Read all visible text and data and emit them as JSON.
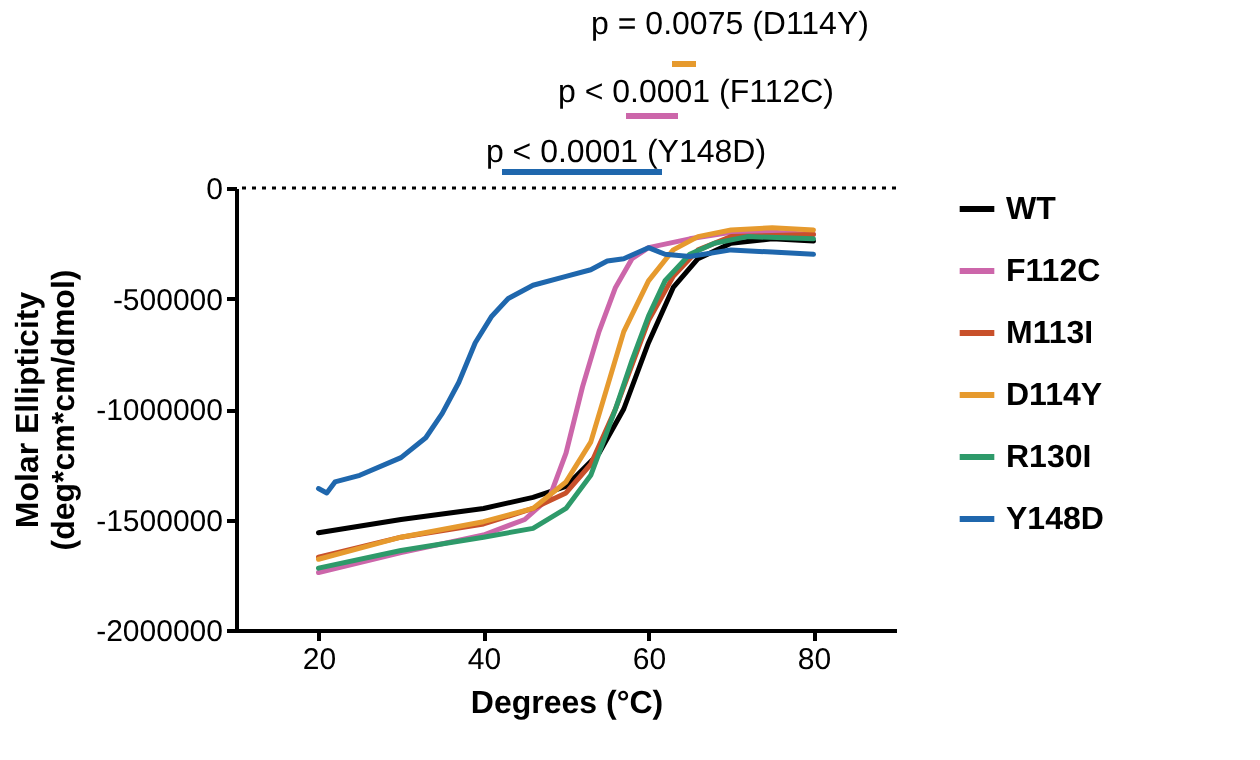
{
  "chart_data": {
    "type": "line",
    "xlabel": "Degrees (°C)",
    "ylabel": "Molar Ellipticity\n(deg*cm*cm/dmol)",
    "xlim": [
      10,
      90
    ],
    "xticks": [
      20,
      40,
      60,
      80
    ],
    "ylim": [
      -2000000,
      0
    ],
    "yticks": [
      -2000000,
      -1500000,
      -1000000,
      -500000,
      0
    ],
    "grid": false,
    "legend": "right",
    "line_style": "solid",
    "marker": "none",
    "ref_lines": [
      {
        "axis": "y",
        "value": 0,
        "line_style": "dotted",
        "color": "#000000"
      }
    ],
    "annotations": [
      "p < 0.0001 (Y148D)",
      "p < 0.0001 (F112C)",
      "p = 0.0075 (D114Y)"
    ],
    "series": [
      {
        "name": "WT",
        "color": "#000000",
        "x": [
          20,
          30,
          40,
          46,
          50,
          54,
          57,
          60,
          63,
          66,
          70,
          75,
          80
        ],
        "values": [
          -1560000,
          -1500000,
          -1450000,
          -1400000,
          -1350000,
          -1200000,
          -1000000,
          -700000,
          -450000,
          -320000,
          -250000,
          -230000,
          -240000
        ]
      },
      {
        "name": "F112C",
        "color": "#cc66aa",
        "x": [
          20,
          30,
          40,
          45,
          48,
          50,
          52,
          54,
          56,
          58,
          60,
          65,
          70,
          75,
          80
        ],
        "values": [
          -1740000,
          -1650000,
          -1570000,
          -1500000,
          -1400000,
          -1200000,
          -900000,
          -650000,
          -450000,
          -320000,
          -270000,
          -230000,
          -200000,
          -200000,
          -210000
        ]
      },
      {
        "name": "M113I",
        "color": "#c8502a",
        "x": [
          20,
          30,
          40,
          46,
          50,
          53,
          56,
          58,
          60,
          63,
          66,
          70,
          80
        ],
        "values": [
          -1670000,
          -1580000,
          -1520000,
          -1450000,
          -1380000,
          -1250000,
          -1000000,
          -800000,
          -600000,
          -400000,
          -280000,
          -220000,
          -210000
        ]
      },
      {
        "name": "D114Y",
        "color": "#e69a2e",
        "x": [
          20,
          30,
          40,
          46,
          50,
          53,
          55,
          57,
          60,
          63,
          66,
          70,
          75,
          80
        ],
        "values": [
          -1680000,
          -1580000,
          -1510000,
          -1450000,
          -1330000,
          -1150000,
          -900000,
          -650000,
          -420000,
          -280000,
          -220000,
          -190000,
          -180000,
          -190000
        ]
      },
      {
        "name": "R130I",
        "color": "#2e9a6a",
        "x": [
          20,
          30,
          40,
          46,
          50,
          53,
          56,
          58,
          60,
          62,
          65,
          68,
          72,
          80
        ],
        "values": [
          -1720000,
          -1640000,
          -1580000,
          -1540000,
          -1450000,
          -1300000,
          -1000000,
          -780000,
          -580000,
          -420000,
          -300000,
          -250000,
          -220000,
          -230000
        ]
      },
      {
        "name": "Y148D",
        "color": "#1f67ad",
        "x": [
          20,
          21,
          22,
          25,
          30,
          33,
          35,
          37,
          39,
          41,
          43,
          46,
          50,
          53,
          55,
          57,
          60,
          62,
          65,
          70,
          75,
          80
        ],
        "values": [
          -1360000,
          -1380000,
          -1330000,
          -1300000,
          -1220000,
          -1130000,
          -1020000,
          -880000,
          -700000,
          -580000,
          -500000,
          -440000,
          -400000,
          -370000,
          -330000,
          -320000,
          -270000,
          -300000,
          -310000,
          -280000,
          -290000,
          -300000
        ]
      }
    ]
  }
}
